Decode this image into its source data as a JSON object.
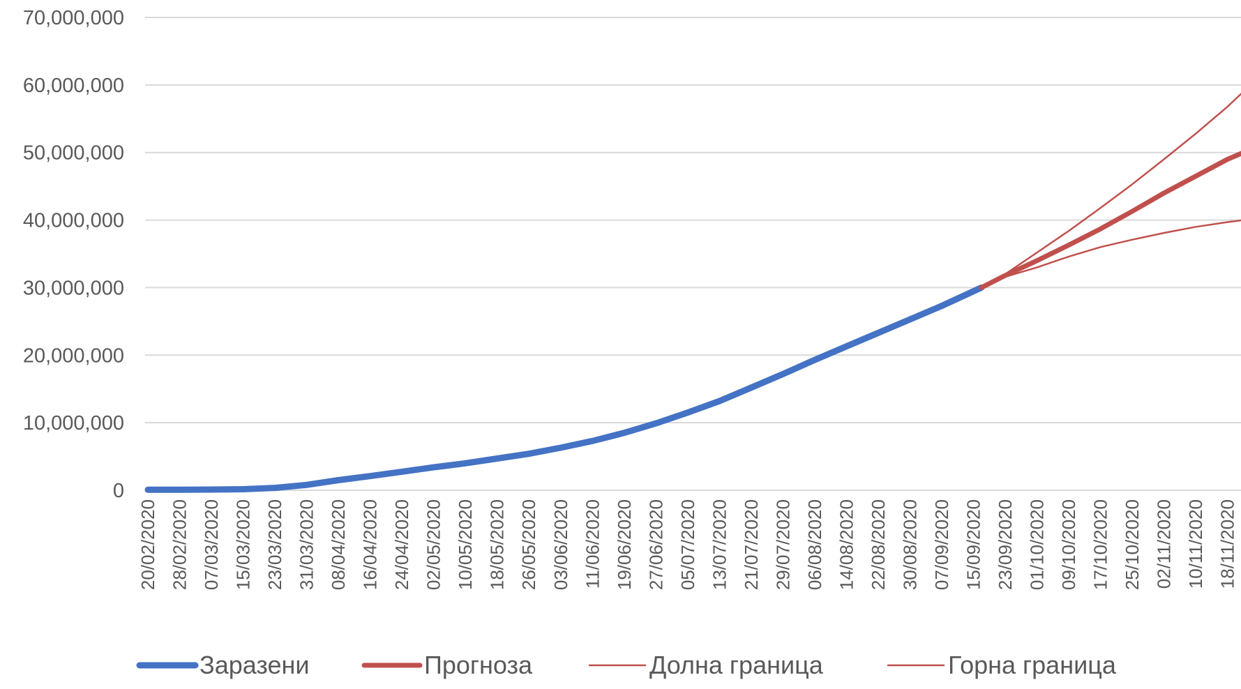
{
  "chart_data": {
    "type": "line",
    "title": "",
    "xlabel": "",
    "ylabel": "",
    "x_range": [
      "20/02/2020",
      "22/11/2020"
    ],
    "ylim": [
      0,
      70000000
    ],
    "y_ticks": [
      "70,000,000",
      "60,000,000",
      "50,000,000",
      "40,000,000",
      "30,000,000",
      "20,000,000",
      "10,000,000",
      "0"
    ],
    "y_tick_values": [
      70000000,
      60000000,
      50000000,
      40000000,
      30000000,
      20000000,
      10000000,
      0
    ],
    "x_ticks": [
      "20/02/2020",
      "28/02/2020",
      "07/03/2020",
      "15/03/2020",
      "23/03/2020",
      "31/03/2020",
      "08/04/2020",
      "16/04/2020",
      "24/04/2020",
      "02/05/2020",
      "10/05/2020",
      "18/05/2020",
      "26/05/2020",
      "03/06/2020",
      "11/06/2020",
      "19/06/2020",
      "27/06/2020",
      "05/07/2020",
      "13/07/2020",
      "21/07/2020",
      "29/07/2020",
      "06/08/2020",
      "14/08/2020",
      "22/08/2020",
      "30/08/2020",
      "07/09/2020",
      "15/09/2020",
      "23/09/2020",
      "01/10/2020",
      "09/10/2020",
      "17/10/2020",
      "25/10/2020",
      "02/11/2020",
      "10/11/2020",
      "18/11/2020"
    ],
    "grid": "horizontal",
    "legend_position": "bottom",
    "series": [
      {
        "name": "Заразени",
        "color": "#4472C4",
        "x": [
          "20/02/2020",
          "28/02/2020",
          "07/03/2020",
          "15/03/2020",
          "23/03/2020",
          "31/03/2020",
          "08/04/2020",
          "16/04/2020",
          "24/04/2020",
          "02/05/2020",
          "10/05/2020",
          "18/05/2020",
          "26/05/2020",
          "03/06/2020",
          "11/06/2020",
          "19/06/2020",
          "27/06/2020",
          "05/07/2020",
          "13/07/2020",
          "21/07/2020",
          "29/07/2020",
          "06/08/2020",
          "14/08/2020",
          "22/08/2020",
          "30/08/2020",
          "07/09/2020",
          "17/09/2020"
        ],
        "values": [
          76000,
          84000,
          105000,
          160000,
          350000,
          800000,
          1500000,
          2100000,
          2750000,
          3400000,
          4000000,
          4700000,
          5400000,
          6300000,
          7300000,
          8500000,
          9900000,
          11500000,
          13200000,
          15200000,
          17200000,
          19300000,
          21300000,
          23300000,
          25300000,
          27300000,
          30000000
        ]
      },
      {
        "name": "Прогноза",
        "color": "#C0504D",
        "x": [
          "17/09/2020",
          "23/09/2020",
          "01/10/2020",
          "09/10/2020",
          "17/10/2020",
          "25/10/2020",
          "02/11/2020",
          "10/11/2020",
          "18/11/2020",
          "22/11/2020"
        ],
        "values": [
          30000000,
          31800000,
          34000000,
          36300000,
          38700000,
          41300000,
          44000000,
          46500000,
          49000000,
          50000000
        ]
      },
      {
        "name": "Долна граница",
        "color": "#C0504D",
        "x": [
          "17/09/2020",
          "23/09/2020",
          "01/10/2020",
          "09/10/2020",
          "17/10/2020",
          "25/10/2020",
          "02/11/2020",
          "10/11/2020",
          "18/11/2020",
          "22/11/2020"
        ],
        "values": [
          30000000,
          31600000,
          33000000,
          34600000,
          36000000,
          37100000,
          38100000,
          39000000,
          39700000,
          40000000
        ]
      },
      {
        "name": "Горна граница",
        "color": "#C0504D",
        "x": [
          "17/09/2020",
          "23/09/2020",
          "01/10/2020",
          "09/10/2020",
          "17/10/2020",
          "25/10/2020",
          "02/11/2020",
          "10/11/2020",
          "18/11/2020",
          "22/11/2020"
        ],
        "values": [
          30000000,
          32000000,
          35200000,
          38400000,
          41800000,
          45300000,
          49000000,
          52800000,
          56800000,
          59000000
        ]
      }
    ]
  }
}
